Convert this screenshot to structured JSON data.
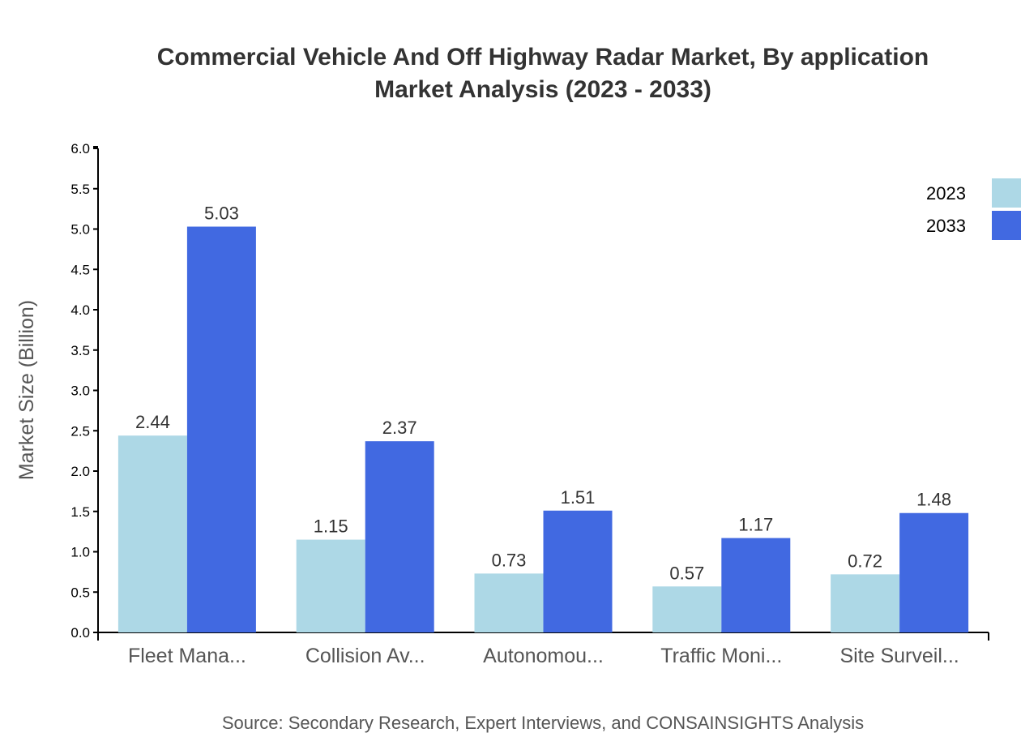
{
  "chart_data": {
    "type": "bar",
    "title": "Commercial Vehicle And Off Highway Radar Market, By application",
    "subtitle": "Market Analysis (2023 - 2033)",
    "xlabel": "",
    "ylabel": "Market Size (Billion)",
    "ylim": [
      0,
      6.0
    ],
    "yticks": [
      "0.0",
      "0.5",
      "1.0",
      "1.5",
      "2.0",
      "2.5",
      "3.0",
      "3.5",
      "4.0",
      "4.5",
      "5.0",
      "5.5",
      "6.0"
    ],
    "categories": [
      "Fleet Mana...",
      "Collision Av...",
      "Autonomou...",
      "Traffic Moni...",
      "Site Surveil..."
    ],
    "series": [
      {
        "name": "2023",
        "color": "#add8e6",
        "values": [
          2.44,
          1.15,
          0.73,
          0.57,
          0.72
        ]
      },
      {
        "name": "2033",
        "color": "#4169e1",
        "values": [
          5.03,
          2.37,
          1.51,
          1.17,
          1.48
        ]
      }
    ],
    "grid": false,
    "legend": "top-right",
    "source": "Source: Secondary Research, Expert Interviews, and CONSAINSIGHTS Analysis"
  }
}
